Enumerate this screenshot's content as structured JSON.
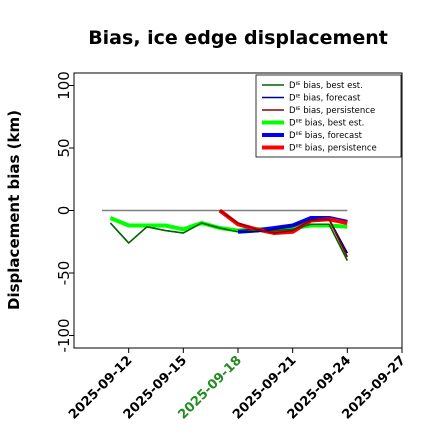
{
  "chart_data": {
    "type": "line",
    "title": "Bias, ice edge displacement",
    "xlabel": "",
    "ylabel": "Displacement bias (km)",
    "xlim": [
      "2025-09-09",
      "2025-09-27"
    ],
    "ylim": [
      -110,
      110
    ],
    "yticks": [
      100,
      50,
      0,
      -50,
      -100
    ],
    "xticks": [
      "2025-09-12",
      "2025-09-15",
      "2025-09-18",
      "2025-09-21",
      "2025-09-24",
      "2025-09-27"
    ],
    "highlight_xtick": "2025-09-18",
    "highlight_color": "#228B22",
    "reference_line": 0,
    "legend_position": "upper right",
    "legend": [
      {
        "label": "Dᴵᴱ bias, best est."
      },
      {
        "label": "Dᴵᴱ bias, forecast"
      },
      {
        "label": "Dᴵᴱ bias, persistence"
      },
      {
        "label": "Dᴵᴵᴱ bias, best est."
      },
      {
        "label": "Dᴵᴵᴱ bias, forecast"
      },
      {
        "label": "Dᴵᴵᴱ bias, persistence"
      }
    ],
    "series": [
      {
        "name": "Dᴵᴱ bias, best est.",
        "color": "#006400",
        "width": 1.5,
        "x": [
          "2025-09-11",
          "2025-09-12",
          "2025-09-13",
          "2025-09-14",
          "2025-09-15",
          "2025-09-16",
          "2025-09-17",
          "2025-09-18",
          "2025-09-19",
          "2025-09-20",
          "2025-09-21",
          "2025-09-22",
          "2025-09-23",
          "2025-09-24"
        ],
        "y": [
          -10,
          -26,
          -13,
          -16,
          -18,
          -10,
          -14,
          -17,
          -16,
          -16,
          -15,
          -11,
          -11,
          -40
        ]
      },
      {
        "name": "Dᴵᴱ bias, forecast",
        "color": "#00008B",
        "width": 1.5,
        "x": [
          "2025-09-18",
          "2025-09-19",
          "2025-09-20",
          "2025-09-21",
          "2025-09-22",
          "2025-09-23",
          "2025-09-24"
        ],
        "y": [
          -17,
          -17,
          -15,
          -12,
          -7,
          -7,
          -34
        ]
      },
      {
        "name": "Dᴵᴱ bias, persistence",
        "color": "#8B0000",
        "width": 1.5,
        "x": [
          "2025-09-17",
          "2025-09-18",
          "2025-09-19",
          "2025-09-20",
          "2025-09-21",
          "2025-09-22",
          "2025-09-23",
          "2025-09-24"
        ],
        "y": [
          0,
          -10,
          -15,
          -18,
          -16,
          -8,
          -7,
          -37
        ]
      },
      {
        "name": "Dᴵᴵᴱ bias, best est.",
        "color": "#00FF00",
        "width": 4,
        "x": [
          "2025-09-11",
          "2025-09-12",
          "2025-09-13",
          "2025-09-14",
          "2025-09-15",
          "2025-09-16",
          "2025-09-17",
          "2025-09-18",
          "2025-09-19",
          "2025-09-20",
          "2025-09-21",
          "2025-09-22",
          "2025-09-23",
          "2025-09-24"
        ],
        "y": [
          -6,
          -12,
          -12,
          -12,
          -15,
          -10,
          -14,
          -16,
          -15,
          -15,
          -14,
          -12,
          -12,
          -13
        ]
      },
      {
        "name": "Dᴵᴵᴱ bias, forecast",
        "color": "#0000FF",
        "width": 4,
        "x": [
          "2025-09-18",
          "2025-09-19",
          "2025-09-20",
          "2025-09-21",
          "2025-09-22",
          "2025-09-23",
          "2025-09-24"
        ],
        "y": [
          -17,
          -16,
          -14,
          -12,
          -6,
          -6,
          -9
        ]
      },
      {
        "name": "Dᴵᴵᴱ bias, persistence",
        "color": "#FF0000",
        "width": 4,
        "x": [
          "2025-09-17",
          "2025-09-18",
          "2025-09-19",
          "2025-09-20",
          "2025-09-21",
          "2025-09-22",
          "2025-09-23",
          "2025-09-24"
        ],
        "y": [
          0,
          -11,
          -15,
          -18,
          -17,
          -8,
          -7,
          -10
        ]
      }
    ]
  }
}
